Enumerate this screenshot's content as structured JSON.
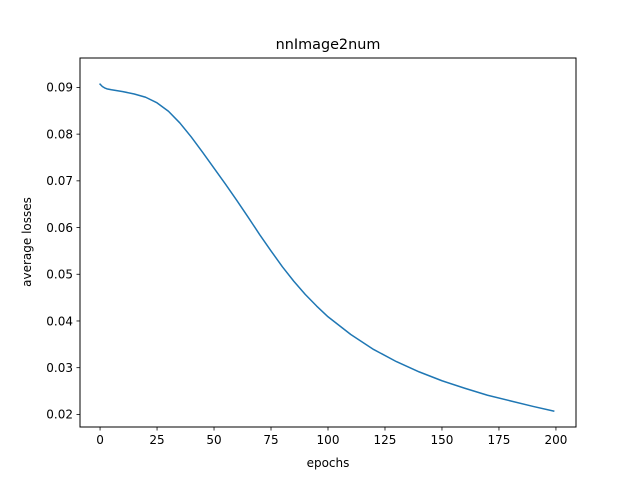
{
  "chart_data": {
    "type": "line",
    "title": "nnImage2num",
    "xlabel": "epochs",
    "ylabel": "average losses",
    "xlim": [
      -8.8,
      208.8
    ],
    "ylim": [
      0.0173,
      0.0963
    ],
    "xticks": [
      0,
      25,
      50,
      75,
      100,
      125,
      150,
      175,
      200
    ],
    "xtick_labels": [
      "0",
      "25",
      "50",
      "75",
      "100",
      "125",
      "150",
      "175",
      "200"
    ],
    "yticks": [
      0.02,
      0.03,
      0.04,
      0.05,
      0.06,
      0.07,
      0.08,
      0.09
    ],
    "ytick_labels": [
      "0.02",
      "0.03",
      "0.04",
      "0.05",
      "0.06",
      "0.07",
      "0.08",
      "0.09"
    ],
    "grid": false,
    "series": [
      {
        "color": "#1f77b4",
        "x": [
          0,
          1,
          2,
          3,
          5,
          10,
          15,
          20,
          25,
          30,
          35,
          40,
          45,
          50,
          55,
          60,
          65,
          70,
          75,
          80,
          85,
          90,
          95,
          100,
          110,
          120,
          130,
          140,
          150,
          160,
          170,
          180,
          190,
          199
        ],
        "y": [
          0.0907,
          0.0902,
          0.0899,
          0.0897,
          0.0895,
          0.0891,
          0.0886,
          0.0879,
          0.0867,
          0.0849,
          0.0824,
          0.0794,
          0.0761,
          0.0727,
          0.0693,
          0.0658,
          0.0622,
          0.0585,
          0.055,
          0.0516,
          0.0485,
          0.0457,
          0.0432,
          0.0409,
          0.0371,
          0.0339,
          0.0313,
          0.0291,
          0.0272,
          0.0256,
          0.0241,
          0.0229,
          0.0217,
          0.0207
        ]
      }
    ]
  }
}
